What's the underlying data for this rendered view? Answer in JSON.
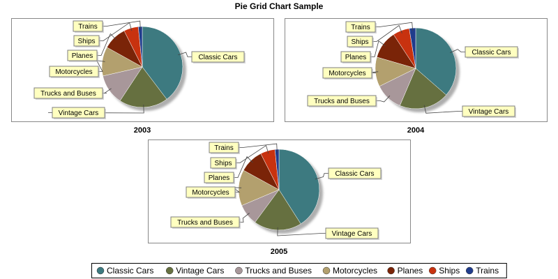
{
  "title": "Pie Grid Chart Sample",
  "chart_data": {
    "type": "pie",
    "categories": [
      "Classic Cars",
      "Vintage Cars",
      "Trucks and Buses",
      "Motorcycles",
      "Planes",
      "Ships",
      "Trains"
    ],
    "colors": [
      "#3d7a80",
      "#667040",
      "#a8979a",
      "#b3a06e",
      "#7a2408",
      "#c8320f",
      "#203c8c"
    ],
    "charts": [
      {
        "title": "2003",
        "values": [
          37.5,
          18.5,
          11.5,
          11,
          9,
          5.5,
          1.5
        ]
      },
      {
        "title": "2004",
        "values": [
          35.5,
          19.5,
          11,
          11.5,
          11,
          6.5,
          2.5
        ]
      },
      {
        "title": "2005",
        "values": [
          38.5,
          18,
          8,
          13.5,
          9,
          5.5,
          1.5
        ]
      }
    ],
    "legend_position": "bottom"
  }
}
